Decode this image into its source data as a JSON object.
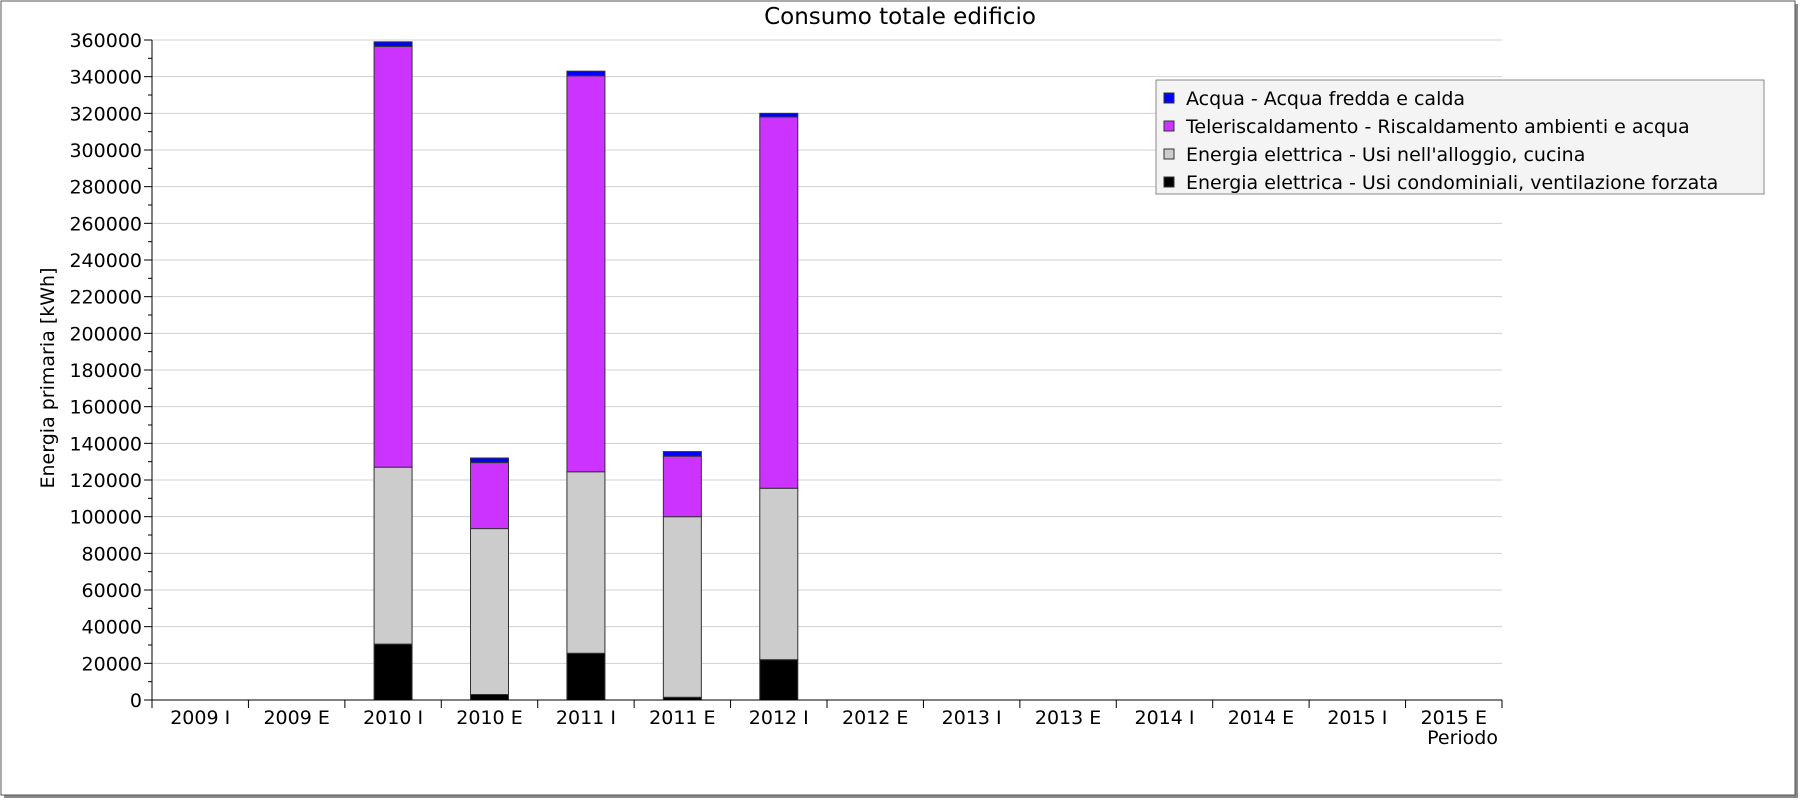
{
  "chart_data": {
    "type": "bar",
    "stacked": true,
    "title": "Consumo totale edificio",
    "xlabel": "Periodo",
    "ylabel": "Energia primaria [kWh]",
    "ylim": [
      0,
      360000
    ],
    "ytick_step": 20000,
    "grid": true,
    "legend_position": "top-right",
    "categories": [
      "2009 I",
      "2009 E",
      "2010 I",
      "2010 E",
      "2011 I",
      "2011 E",
      "2012 I",
      "2012 E",
      "2013 I",
      "2013 E",
      "2014 I",
      "2014 E",
      "2015 I",
      "2015 E"
    ],
    "series": [
      {
        "name": "Energia elettrica - Usi condominiali, ventilazione forzata",
        "color": "#000000",
        "values": [
          0,
          0,
          30500,
          3000,
          25500,
          1500,
          22000,
          0,
          0,
          0,
          0,
          0,
          0,
          0
        ]
      },
      {
        "name": "Energia elettrica - Usi nell'alloggio, cucina",
        "color": "#cccccc",
        "values": [
          0,
          0,
          96500,
          90500,
          99000,
          98500,
          93500,
          0,
          0,
          0,
          0,
          0,
          0,
          0
        ]
      },
      {
        "name": "Teleriscaldamento - Riscaldamento ambienti e acqua",
        "color": "#cc33ff",
        "values": [
          0,
          0,
          229500,
          36000,
          216000,
          33000,
          202500,
          0,
          0,
          0,
          0,
          0,
          0,
          0
        ]
      },
      {
        "name": "Acqua - Acqua fredda e calda",
        "color": "#0000ff",
        "values": [
          0,
          0,
          2500,
          2500,
          2500,
          2500,
          2000,
          0,
          0,
          0,
          0,
          0,
          0,
          0
        ]
      }
    ],
    "legend_order": [
      3,
      2,
      1,
      0
    ]
  }
}
